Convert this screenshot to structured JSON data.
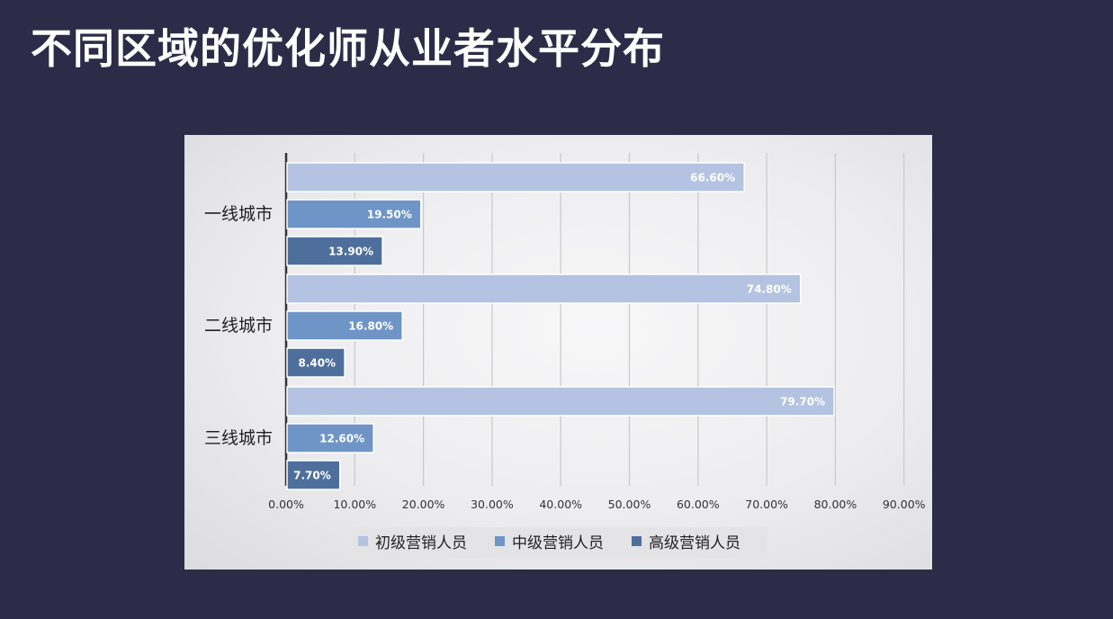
{
  "page": {
    "title": "不同区域的优化师从业者水平分布"
  },
  "colors": {
    "background": "#2d2b47",
    "series": [
      "#b4c3e1",
      "#6f95c7",
      "#4e6f9b"
    ]
  },
  "chart_data": {
    "type": "bar",
    "orientation": "horizontal",
    "categories": [
      "一线城市",
      "二线城市",
      "三线城市"
    ],
    "series": [
      {
        "name": "初级营销人员",
        "values": [
          66.6,
          74.8,
          79.7
        ],
        "labels": [
          "66.60%",
          "74.80%",
          "79.70%"
        ]
      },
      {
        "name": "中级营销人员",
        "values": [
          19.5,
          16.8,
          12.6
        ],
        "labels": [
          "19.50%",
          "16.80%",
          "12.60%"
        ]
      },
      {
        "name": "高级营销人员",
        "values": [
          13.9,
          8.4,
          7.7
        ],
        "labels": [
          "13.90%",
          "8.40%",
          "7.70%"
        ]
      }
    ],
    "xlim": [
      0,
      90
    ],
    "xticks": [
      "0.00%",
      "10.00%",
      "20.00%",
      "30.00%",
      "40.00%",
      "50.00%",
      "60.00%",
      "70.00%",
      "80.00%",
      "90.00%"
    ],
    "grid": true,
    "legend": "bottom"
  }
}
